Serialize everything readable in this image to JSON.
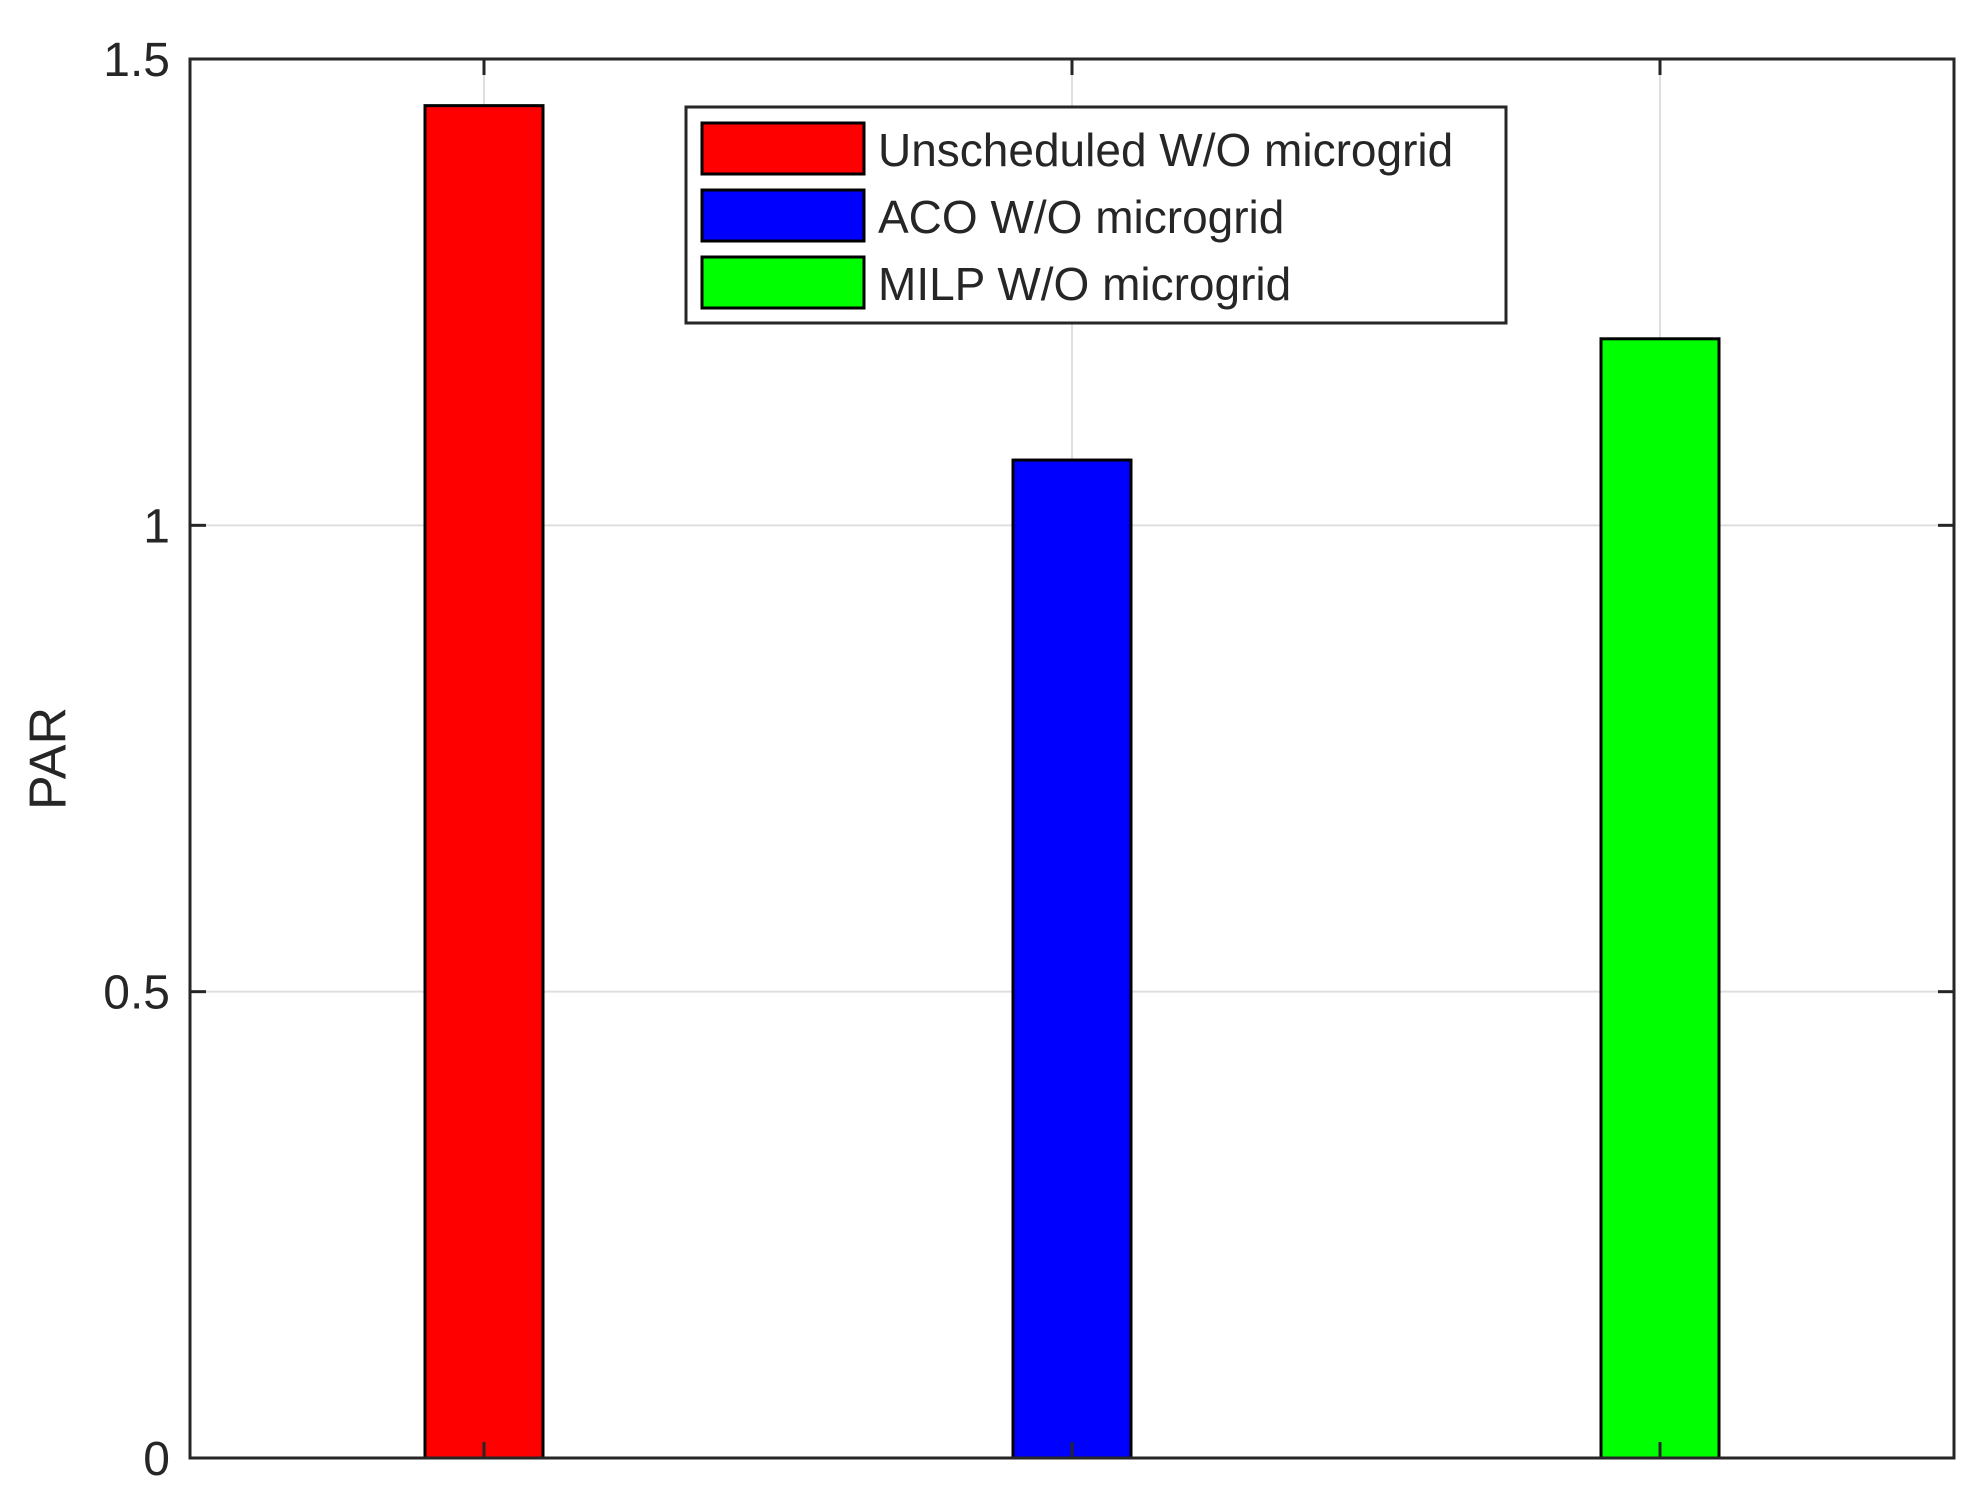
{
  "chart_data": {
    "type": "bar",
    "title": "",
    "xlabel": "",
    "ylabel": "PAR",
    "ylim": [
      0,
      1.5
    ],
    "yticks": [
      0,
      0.5,
      1,
      1.5
    ],
    "ytick_labels": [
      "0",
      "0.5",
      "1",
      "1.5"
    ],
    "grid": true,
    "legend_position": "top-center",
    "series": [
      {
        "name": "Unscheduled W/O microgrid",
        "value": 1.45,
        "color": "#ff0000"
      },
      {
        "name": "ACO W/O microgrid",
        "value": 1.07,
        "color": "#0000ff"
      },
      {
        "name": "MILP W/O microgrid",
        "value": 1.2,
        "color": "#00ff00"
      }
    ]
  }
}
